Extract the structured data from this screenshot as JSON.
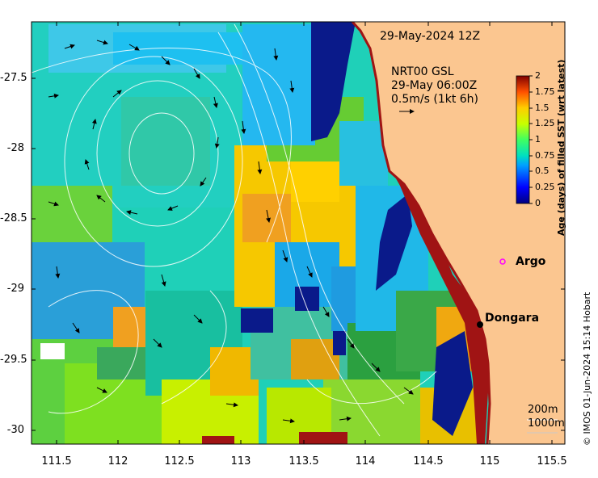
{
  "title": "29-May-2024 12Z",
  "product": {
    "line1": "NRT00 GSL",
    "line2": "29-May 06:00Z",
    "line3": "0.5m/s (1kt 6h)"
  },
  "places": {
    "argo": "Argo",
    "dongara": "Dongara"
  },
  "isobaths": {
    "a": "200m",
    "b": "1000m"
  },
  "colorbar": {
    "label": "Age (days) of filled SST (wrt latest)",
    "ticks": [
      "2",
      "1.75",
      "1.5",
      "1.25",
      "1",
      "0.75",
      "0.5",
      "0.25",
      "0"
    ]
  },
  "axes": {
    "x_ticks": [
      "111.5",
      "112",
      "112.5",
      "113",
      "113.5",
      "114",
      "114.5",
      "115",
      "115.5"
    ],
    "y_ticks": [
      "-27.5",
      "-28",
      "-28.5",
      "-29",
      "-29.5",
      "-30"
    ]
  },
  "credit": "© IMOS 01-Jun-2024 15:14 Hobart",
  "colors": {
    "land": "#fbc690",
    "coast": "#a01414",
    "argo_marker": "#ff00ff"
  }
}
